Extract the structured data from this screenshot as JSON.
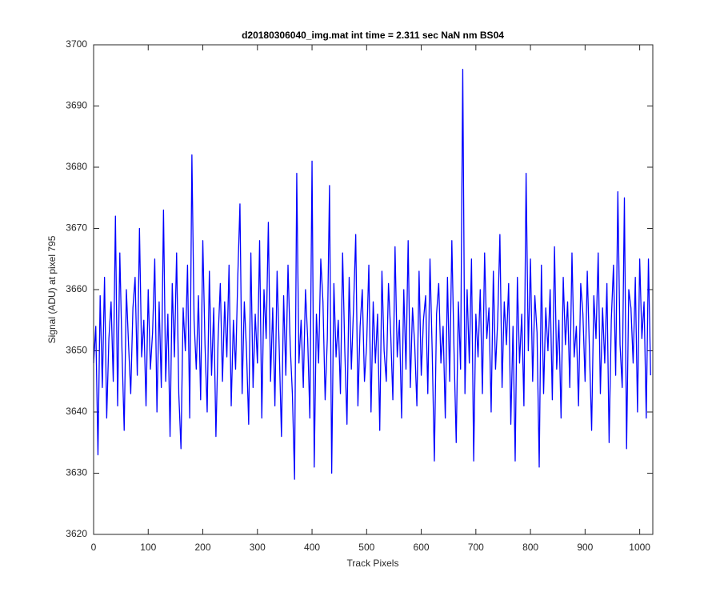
{
  "chart_data": {
    "type": "line",
    "title": "d20180306040_img.mat int time = 2.311 sec  NaN nm BS04",
    "x_label": "Track Pixels",
    "y_label": "Signal (ADU) at pixel 795",
    "color": "#0000ff",
    "xlim": [
      0,
      1024
    ],
    "ylim": [
      3620,
      3700
    ],
    "xticks": [
      0,
      100,
      200,
      300,
      400,
      500,
      600,
      700,
      800,
      900,
      1000
    ],
    "yticks": [
      3620,
      3630,
      3640,
      3650,
      3660,
      3670,
      3680,
      3690,
      3700
    ],
    "grid": false,
    "x": [
      0,
      4,
      8,
      12,
      16,
      20,
      24,
      28,
      32,
      36,
      40,
      44,
      48,
      52,
      56,
      60,
      64,
      68,
      72,
      76,
      80,
      84,
      88,
      92,
      96,
      100,
      104,
      108,
      112,
      116,
      120,
      124,
      128,
      132,
      136,
      140,
      144,
      148,
      152,
      156,
      160,
      164,
      168,
      172,
      176,
      180,
      184,
      188,
      192,
      196,
      200,
      204,
      208,
      212,
      216,
      220,
      224,
      228,
      232,
      236,
      240,
      244,
      248,
      252,
      256,
      260,
      264,
      268,
      272,
      276,
      280,
      284,
      288,
      292,
      296,
      300,
      304,
      308,
      312,
      316,
      320,
      324,
      328,
      332,
      336,
      340,
      344,
      348,
      352,
      356,
      360,
      364,
      368,
      372,
      376,
      380,
      384,
      388,
      392,
      396,
      400,
      404,
      408,
      412,
      416,
      420,
      424,
      428,
      432,
      436,
      440,
      444,
      448,
      452,
      456,
      460,
      464,
      468,
      472,
      476,
      480,
      484,
      488,
      492,
      496,
      500,
      504,
      508,
      512,
      516,
      520,
      524,
      528,
      532,
      536,
      540,
      544,
      548,
      552,
      556,
      560,
      564,
      568,
      572,
      576,
      580,
      584,
      588,
      592,
      596,
      600,
      604,
      608,
      612,
      616,
      620,
      624,
      628,
      632,
      636,
      640,
      644,
      648,
      652,
      656,
      660,
      664,
      668,
      672,
      676,
      680,
      684,
      688,
      692,
      696,
      700,
      704,
      708,
      712,
      716,
      720,
      724,
      728,
      732,
      736,
      740,
      744,
      748,
      752,
      756,
      760,
      764,
      768,
      772,
      776,
      780,
      784,
      788,
      792,
      796,
      800,
      804,
      808,
      812,
      816,
      820,
      824,
      828,
      832,
      836,
      840,
      844,
      848,
      852,
      856,
      860,
      864,
      868,
      872,
      876,
      880,
      884,
      888,
      892,
      896,
      900,
      904,
      908,
      912,
      916,
      920,
      924,
      928,
      932,
      936,
      940,
      944,
      948,
      952,
      956,
      960,
      964,
      968,
      972,
      976,
      980,
      984,
      988,
      992,
      996,
      1000,
      1004,
      1008,
      1012,
      1016,
      1020
    ],
    "values": [
      3648,
      3654,
      3633,
      3659,
      3644,
      3662,
      3639,
      3652,
      3658,
      3645,
      3672,
      3641,
      3666,
      3650,
      3637,
      3660,
      3651,
      3643,
      3657,
      3662,
      3646,
      3670,
      3649,
      3655,
      3641,
      3660,
      3647,
      3653,
      3665,
      3640,
      3658,
      3644,
      3673,
      3645,
      3656,
      3636,
      3661,
      3649,
      3666,
      3643,
      3634,
      3657,
      3650,
      3664,
      3639,
      3682,
      3655,
      3647,
      3659,
      3642,
      3668,
      3651,
      3640,
      3663,
      3646,
      3657,
      3636,
      3652,
      3661,
      3645,
      3658,
      3649,
      3664,
      3641,
      3655,
      3647,
      3662,
      3674,
      3643,
      3658,
      3650,
      3638,
      3666,
      3644,
      3656,
      3648,
      3668,
      3639,
      3660,
      3652,
      3671,
      3645,
      3657,
      3641,
      3663,
      3650,
      3636,
      3659,
      3646,
      3664,
      3651,
      3643,
      3629,
      3679,
      3648,
      3655,
      3644,
      3660,
      3652,
      3639,
      3681,
      3631,
      3656,
      3648,
      3665,
      3658,
      3642,
      3652,
      3677,
      3630,
      3661,
      3649,
      3655,
      3643,
      3666,
      3650,
      3638,
      3662,
      3647,
      3657,
      3669,
      3641,
      3654,
      3660,
      3645,
      3651,
      3664,
      3640,
      3658,
      3648,
      3656,
      3637,
      3663,
      3650,
      3645,
      3661,
      3653,
      3642,
      3667,
      3649,
      3655,
      3639,
      3660,
      3647,
      3668,
      3644,
      3657,
      3651,
      3641,
      3663,
      3646,
      3655,
      3659,
      3643,
      3665,
      3650,
      3632,
      3656,
      3661,
      3648,
      3654,
      3639,
      3662,
      3645,
      3668,
      3650,
      3635,
      3658,
      3647,
      3696,
      3643,
      3660,
      3648,
      3665,
      3632,
      3656,
      3649,
      3660,
      3643,
      3666,
      3652,
      3657,
      3640,
      3663,
      3647,
      3655,
      3669,
      3644,
      3658,
      3651,
      3661,
      3638,
      3654,
      3632,
      3662,
      3648,
      3656,
      3641,
      3679,
      3650,
      3665,
      3645,
      3659,
      3653,
      3631,
      3664,
      3643,
      3657,
      3650,
      3660,
      3642,
      3667,
      3647,
      3655,
      3639,
      3662,
      3651,
      3658,
      3644,
      3666,
      3649,
      3654,
      3641,
      3661,
      3656,
      3645,
      3663,
      3650,
      3637,
      3659,
      3652,
      3666,
      3643,
      3657,
      3648,
      3661,
      3635,
      3655,
      3664,
      3646,
      3676,
      3651,
      3644,
      3675,
      3634,
      3660,
      3657,
      3648,
      3662,
      3640,
      3665,
      3652,
      3658,
      3639,
      3665,
      3646
    ]
  }
}
